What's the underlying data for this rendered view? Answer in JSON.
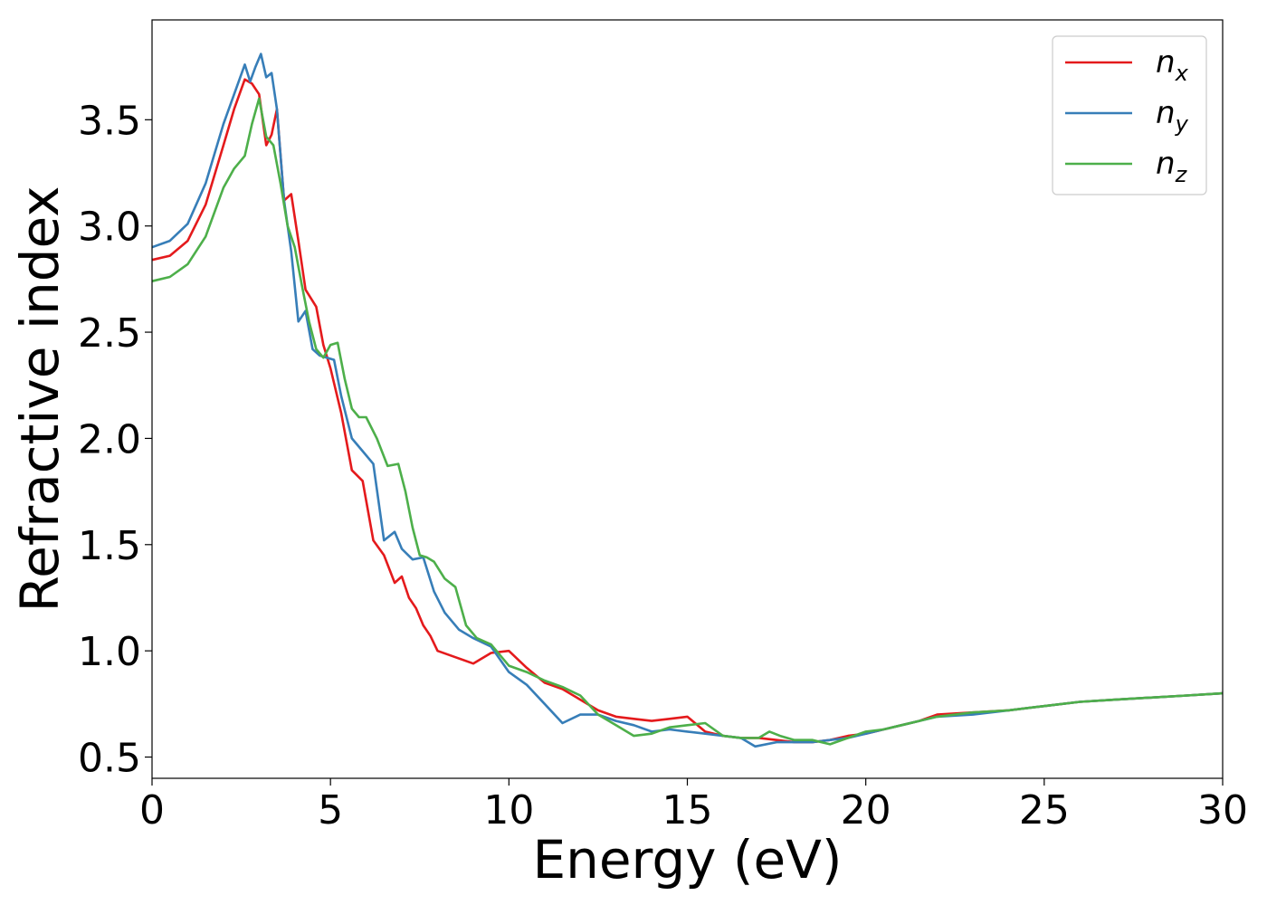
{
  "chart_data": {
    "type": "line",
    "title": "",
    "xlabel": "Energy (eV)",
    "ylabel": "Refractive index",
    "xlim": [
      0,
      30
    ],
    "ylim": [
      0.4,
      3.97
    ],
    "xticks": [
      0,
      5,
      10,
      15,
      20,
      25,
      30
    ],
    "yticks": [
      0.5,
      1.0,
      1.5,
      2.0,
      2.5,
      3.0,
      3.5
    ],
    "xtick_labels": [
      "0",
      "5",
      "10",
      "15",
      "20",
      "25",
      "30"
    ],
    "ytick_labels": [
      "0.5",
      "1.0",
      "1.5",
      "2.0",
      "2.5",
      "3.0",
      "3.5"
    ],
    "grid": false,
    "legend_position": "top-right",
    "series": [
      {
        "name": "n_x",
        "label_base": "n",
        "label_sub": "x",
        "color": "#e41a1c",
        "x": [
          0,
          0.5,
          1,
          1.5,
          2,
          2.3,
          2.6,
          2.8,
          3.0,
          3.2,
          3.35,
          3.5,
          3.7,
          3.9,
          4.1,
          4.3,
          4.6,
          4.8,
          5.0,
          5.3,
          5.6,
          5.9,
          6.2,
          6.5,
          6.8,
          7.0,
          7.2,
          7.4,
          7.6,
          7.8,
          8.0,
          8.5,
          9.0,
          9.5,
          10.0,
          10.5,
          11.0,
          11.5,
          12.0,
          12.5,
          13.0,
          13.5,
          14.0,
          14.5,
          15.0,
          15.5,
          16.0,
          16.5,
          17.0,
          17.5,
          18.0,
          18.5,
          19.0,
          19.5,
          20.0,
          20.5,
          21.0,
          21.5,
          22.0,
          23.0,
          24.0,
          25.0,
          26.0,
          27.0,
          28.0,
          29.0,
          30.0
        ],
        "values": [
          2.84,
          2.86,
          2.93,
          3.1,
          3.38,
          3.55,
          3.69,
          3.67,
          3.62,
          3.38,
          3.43,
          3.55,
          3.12,
          3.15,
          2.93,
          2.7,
          2.62,
          2.44,
          2.33,
          2.12,
          1.85,
          1.8,
          1.52,
          1.45,
          1.32,
          1.35,
          1.25,
          1.2,
          1.12,
          1.07,
          1.0,
          0.97,
          0.94,
          0.99,
          1.0,
          0.92,
          0.85,
          0.82,
          0.77,
          0.72,
          0.69,
          0.68,
          0.67,
          0.68,
          0.69,
          0.62,
          0.6,
          0.59,
          0.59,
          0.58,
          0.57,
          0.57,
          0.58,
          0.6,
          0.61,
          0.63,
          0.65,
          0.67,
          0.7,
          0.71,
          0.72,
          0.74,
          0.76,
          0.77,
          0.78,
          0.79,
          0.8
        ]
      },
      {
        "name": "n_y",
        "label_base": "n",
        "label_sub": "y",
        "color": "#377eb8",
        "x": [
          0,
          0.5,
          1,
          1.5,
          2,
          2.3,
          2.6,
          2.75,
          2.9,
          3.05,
          3.2,
          3.35,
          3.5,
          3.7,
          3.9,
          4.1,
          4.3,
          4.5,
          4.7,
          4.9,
          5.1,
          5.3,
          5.6,
          5.9,
          6.2,
          6.5,
          6.8,
          7.0,
          7.3,
          7.6,
          7.9,
          8.2,
          8.6,
          9.0,
          9.5,
          10.0,
          10.5,
          11.0,
          11.5,
          12.0,
          12.5,
          13.0,
          13.5,
          14.0,
          14.5,
          15.0,
          15.5,
          16.0,
          16.5,
          16.9,
          17.5,
          18.0,
          18.5,
          19.0,
          19.5,
          20.0,
          20.5,
          21.0,
          21.5,
          22.0,
          23.0,
          24.0,
          25.0,
          26.0,
          27.0,
          28.0,
          29.0,
          30.0
        ],
        "values": [
          2.9,
          2.93,
          3.01,
          3.2,
          3.48,
          3.62,
          3.76,
          3.68,
          3.75,
          3.81,
          3.7,
          3.72,
          3.55,
          3.12,
          2.88,
          2.55,
          2.6,
          2.42,
          2.39,
          2.38,
          2.37,
          2.2,
          2.0,
          1.94,
          1.88,
          1.52,
          1.56,
          1.48,
          1.43,
          1.44,
          1.28,
          1.18,
          1.1,
          1.06,
          1.02,
          0.9,
          0.84,
          0.75,
          0.66,
          0.7,
          0.7,
          0.67,
          0.65,
          0.62,
          0.63,
          0.62,
          0.61,
          0.6,
          0.59,
          0.55,
          0.57,
          0.57,
          0.57,
          0.58,
          0.59,
          0.61,
          0.63,
          0.65,
          0.67,
          0.69,
          0.7,
          0.72,
          0.74,
          0.76,
          0.77,
          0.78,
          0.79,
          0.8
        ]
      },
      {
        "name": "n_z",
        "label_base": "n",
        "label_sub": "z",
        "color": "#4daf4a",
        "x": [
          0,
          0.5,
          1,
          1.5,
          2,
          2.3,
          2.6,
          2.8,
          3.0,
          3.2,
          3.4,
          3.6,
          3.8,
          4.0,
          4.2,
          4.4,
          4.6,
          4.8,
          5.0,
          5.2,
          5.4,
          5.6,
          5.8,
          6.0,
          6.3,
          6.6,
          6.9,
          7.1,
          7.3,
          7.5,
          7.7,
          7.9,
          8.2,
          8.5,
          8.8,
          9.1,
          9.5,
          10.0,
          10.5,
          11.0,
          11.5,
          12.0,
          12.5,
          13.0,
          13.5,
          14.0,
          14.5,
          15.0,
          15.5,
          16.0,
          16.5,
          17.0,
          17.3,
          17.6,
          18.0,
          18.5,
          19.0,
          19.5,
          20.0,
          20.5,
          21.0,
          21.5,
          22.0,
          23.0,
          24.0,
          25.0,
          26.0,
          27.0,
          28.0,
          29.0,
          30.0
        ],
        "values": [
          2.74,
          2.76,
          2.82,
          2.95,
          3.18,
          3.27,
          3.33,
          3.48,
          3.6,
          3.42,
          3.38,
          3.2,
          3.0,
          2.9,
          2.72,
          2.55,
          2.42,
          2.38,
          2.44,
          2.45,
          2.28,
          2.14,
          2.1,
          2.1,
          2.0,
          1.87,
          1.88,
          1.75,
          1.58,
          1.45,
          1.44,
          1.42,
          1.34,
          1.3,
          1.12,
          1.06,
          1.03,
          0.93,
          0.9,
          0.86,
          0.83,
          0.79,
          0.7,
          0.65,
          0.6,
          0.61,
          0.64,
          0.65,
          0.66,
          0.6,
          0.59,
          0.59,
          0.62,
          0.6,
          0.58,
          0.58,
          0.56,
          0.59,
          0.62,
          0.63,
          0.65,
          0.67,
          0.69,
          0.71,
          0.72,
          0.74,
          0.76,
          0.77,
          0.78,
          0.79,
          0.8
        ]
      }
    ]
  }
}
